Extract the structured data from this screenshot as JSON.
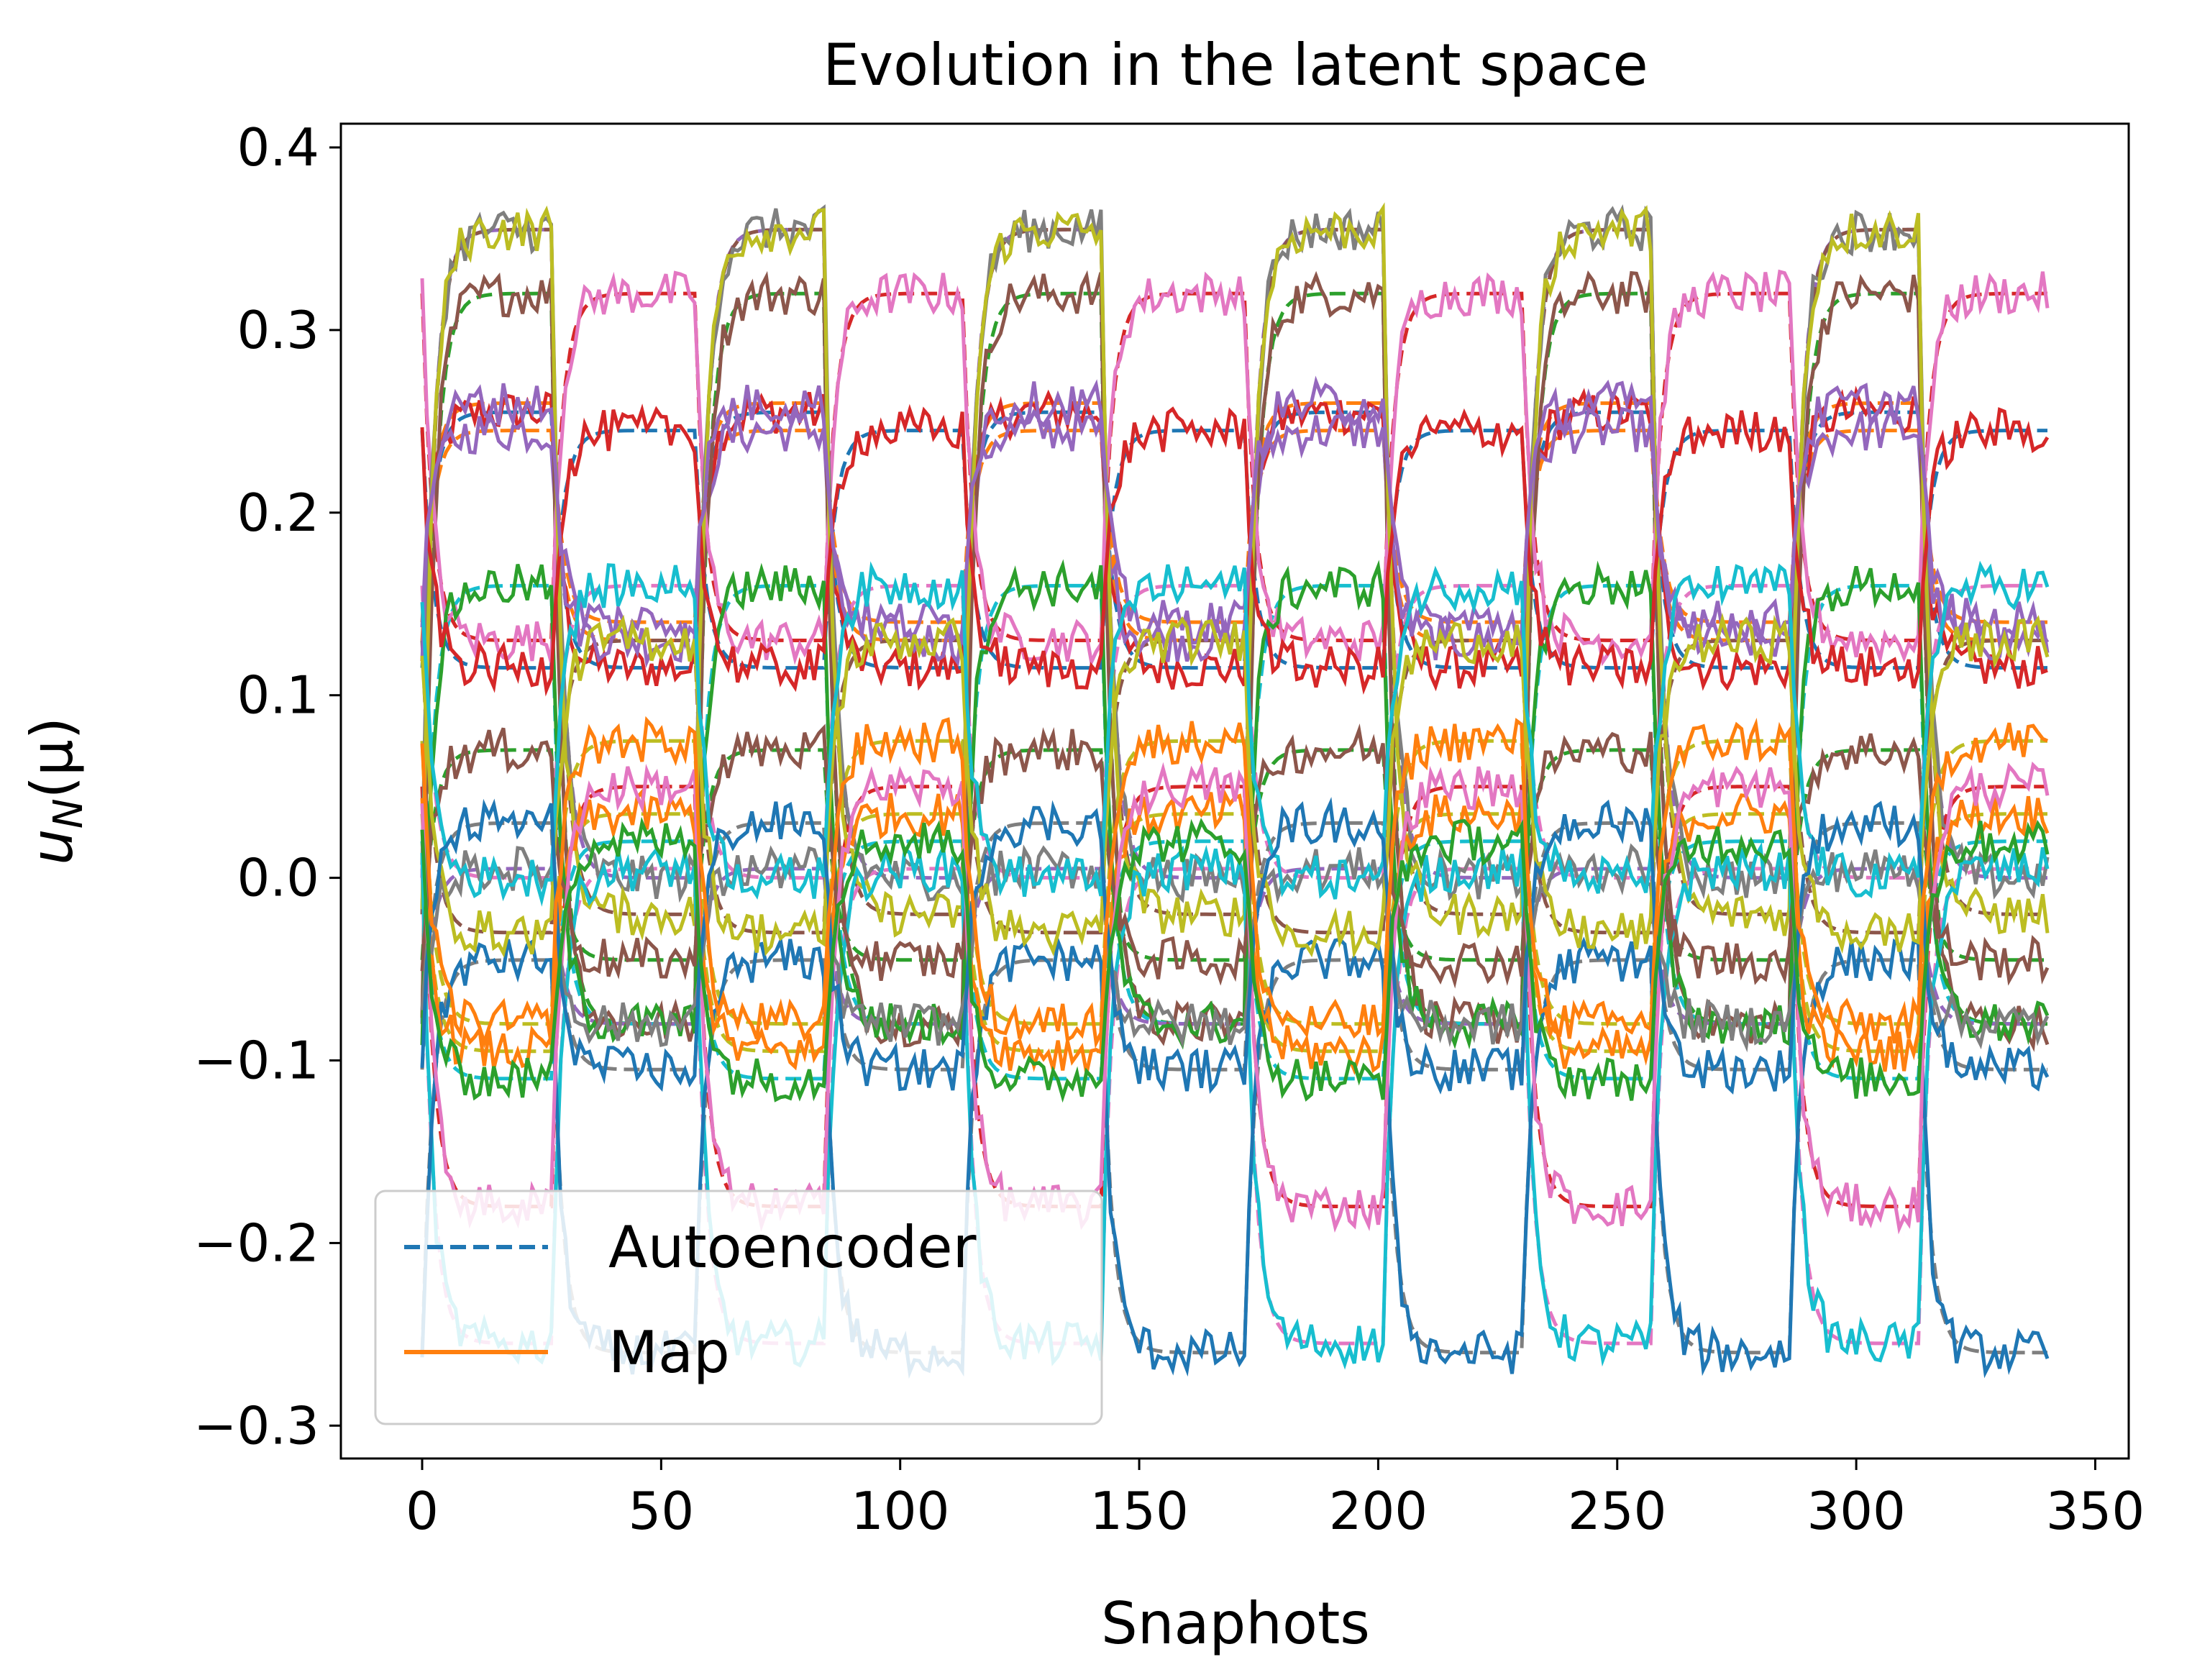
{
  "chart_data": {
    "type": "line",
    "title": "Evolution in the latent space",
    "xlabel": "Snaphots",
    "ylabel": "u_N(μ)",
    "ylabel_main": "u",
    "ylabel_sub": "N",
    "ylabel_arg": "(μ)",
    "xlim": [
      -17,
      357
    ],
    "ylim": [
      -0.318,
      0.413
    ],
    "xticks": [
      0,
      50,
      100,
      150,
      200,
      250,
      300,
      350
    ],
    "xtick_labels": [
      "0",
      "50",
      "100",
      "150",
      "200",
      "250",
      "300",
      "350"
    ],
    "yticks": [
      -0.3,
      -0.2,
      -0.1,
      0.0,
      0.1,
      0.2,
      0.3,
      0.4
    ],
    "ytick_labels": [
      "−0.3",
      "−0.2",
      "−0.1",
      "0.0",
      "0.1",
      "0.2",
      "0.3",
      "0.4"
    ],
    "grid": false,
    "legend_position": "lower-left",
    "legend": [
      {
        "label": "Autoencoder",
        "style": "dashed",
        "color": "#1f77b4"
      },
      {
        "label": "Map",
        "style": "solid",
        "color": "#ff7f0e"
      }
    ],
    "snapshots_per_run": 340,
    "block_boundaries": [
      0,
      27,
      57,
      84,
      113,
      142,
      172,
      201,
      230,
      257,
      286,
      313,
      340
    ],
    "series_colors": [
      "#1f77b4",
      "#ff7f0e",
      "#2ca02c",
      "#d62728",
      "#9467bd",
      "#8c564b",
      "#e377c2",
      "#7f7f7f",
      "#bcbd22",
      "#17becf"
    ],
    "latent_levels": {
      "state_a": [
        0.255,
        0.245,
        0.32,
        0.13,
        0.355,
        0.355,
        -0.255,
        -0.045,
        -0.095,
        0.16,
        0.115,
        0.26,
        0.07,
        -0.18,
        0.005,
        -0.03,
        0.0,
        0.03,
        -0.08,
        -0.11
      ],
      "state_b": [
        0.115,
        0.13,
        -0.08,
        0.32,
        0.0,
        -0.02,
        0.005,
        -0.26,
        0.035,
        -0.08,
        0.245,
        0.14,
        -0.045,
        0.05,
        -0.08,
        0.13,
        0.16,
        -0.105,
        0.075,
        0.02
      ]
    }
  }
}
